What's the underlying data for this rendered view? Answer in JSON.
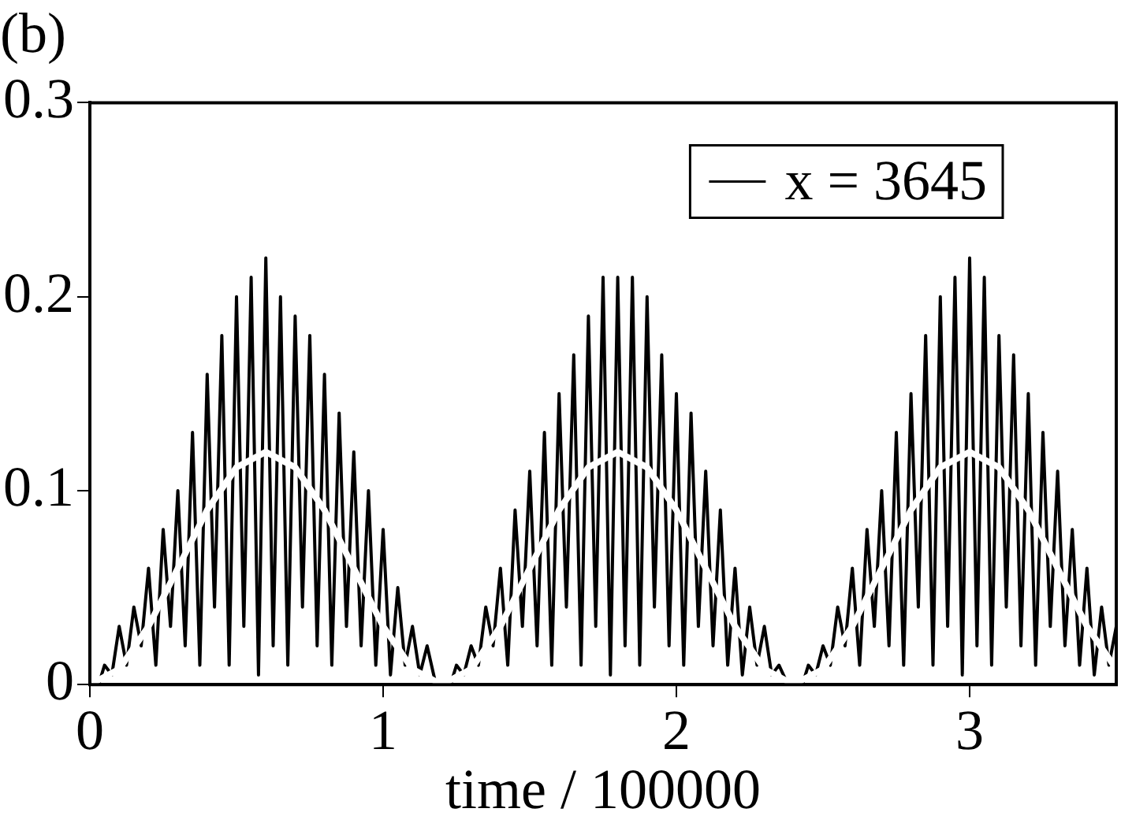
{
  "chart_data": {
    "type": "line",
    "title": "(b)",
    "xlabel": "time / 100000",
    "xlim": [
      0,
      3.5
    ],
    "xticks": [
      0,
      1,
      2,
      3
    ],
    "ylim": [
      0,
      0.3
    ],
    "yticks": [
      0,
      0.1,
      0.2,
      0.3
    ],
    "grid": false,
    "legend": "top right",
    "marker": "none",
    "line_style": "solid",
    "series": [
      {
        "name": "x = 3645",
        "color": "#000000",
        "x": [
          0.03,
          0.05,
          0.075,
          0.1,
          0.125,
          0.15,
          0.175,
          0.2,
          0.225,
          0.25,
          0.275,
          0.3,
          0.325,
          0.35,
          0.375,
          0.4,
          0.425,
          0.45,
          0.475,
          0.5,
          0.525,
          0.55,
          0.575,
          0.6,
          0.625,
          0.65,
          0.675,
          0.7,
          0.725,
          0.75,
          0.775,
          0.8,
          0.825,
          0.85,
          0.875,
          0.9,
          0.925,
          0.95,
          0.975,
          1,
          1.025,
          1.05,
          1.075,
          1.1,
          1.125,
          1.15,
          1.18,
          1.23,
          1.25,
          1.275,
          1.3,
          1.325,
          1.35,
          1.375,
          1.4,
          1.425,
          1.45,
          1.475,
          1.5,
          1.525,
          1.55,
          1.575,
          1.6,
          1.625,
          1.65,
          1.675,
          1.7,
          1.725,
          1.75,
          1.775,
          1.8,
          1.825,
          1.85,
          1.875,
          1.9,
          1.925,
          1.95,
          1.975,
          2,
          2.025,
          2.05,
          2.075,
          2.1,
          2.125,
          2.15,
          2.175,
          2.2,
          2.225,
          2.25,
          2.275,
          2.3,
          2.325,
          2.35,
          2.38,
          2.43,
          2.45,
          2.475,
          2.5,
          2.525,
          2.55,
          2.575,
          2.6,
          2.625,
          2.65,
          2.675,
          2.7,
          2.725,
          2.75,
          2.775,
          2.8,
          2.825,
          2.85,
          2.875,
          2.9,
          2.925,
          2.95,
          2.975,
          3,
          3.025,
          3.05,
          3.075,
          3.1,
          3.125,
          3.15,
          3.175,
          3.2,
          3.225,
          3.25,
          3.275,
          3.3,
          3.325,
          3.35,
          3.375,
          3.4,
          3.425,
          3.45,
          3.475,
          3.5
        ],
        "values": [
          0,
          0.01,
          0.005,
          0.03,
          0.01,
          0.04,
          0.02,
          0.06,
          0.01,
          0.08,
          0.03,
          0.1,
          0.02,
          0.13,
          0.01,
          0.16,
          0.04,
          0.18,
          0.01,
          0.2,
          0.03,
          0.21,
          0.005,
          0.22,
          0.02,
          0.2,
          0.01,
          0.19,
          0.04,
          0.18,
          0.02,
          0.16,
          0.01,
          0.14,
          0.03,
          0.12,
          0.02,
          0.1,
          0.01,
          0.08,
          0.005,
          0.05,
          0.01,
          0.03,
          0.005,
          0.02,
          0,
          0,
          0.01,
          0.005,
          0.02,
          0.01,
          0.04,
          0.02,
          0.06,
          0.01,
          0.09,
          0.03,
          0.11,
          0.02,
          0.13,
          0.01,
          0.15,
          0.04,
          0.17,
          0.01,
          0.19,
          0.03,
          0.21,
          0.005,
          0.21,
          0.02,
          0.21,
          0.01,
          0.2,
          0.04,
          0.17,
          0.02,
          0.15,
          0.01,
          0.14,
          0.03,
          0.11,
          0.02,
          0.09,
          0.01,
          0.06,
          0.005,
          0.04,
          0.01,
          0.03,
          0.005,
          0.01,
          0,
          0,
          0.01,
          0.005,
          0.02,
          0.01,
          0.04,
          0.02,
          0.06,
          0.01,
          0.08,
          0.03,
          0.1,
          0.02,
          0.13,
          0.01,
          0.15,
          0.04,
          0.18,
          0.01,
          0.2,
          0.03,
          0.21,
          0.005,
          0.22,
          0.02,
          0.21,
          0.01,
          0.18,
          0.04,
          0.17,
          0.02,
          0.15,
          0.01,
          0.13,
          0.03,
          0.11,
          0.02,
          0.08,
          0.01,
          0.06,
          0.005,
          0.04,
          0.01,
          0.03
        ]
      },
      {
        "color": "#ffffff",
        "x": [
          0,
          0.1,
          0.2,
          0.3,
          0.4,
          0.5,
          0.6,
          0.7,
          0.8,
          0.9,
          1,
          1.1,
          1.2,
          1.3,
          1.4,
          1.5,
          1.6,
          1.7,
          1.8,
          1.9,
          2,
          2.1,
          2.2,
          2.3,
          2.4,
          2.5,
          2.6,
          2.7,
          2.8,
          2.9,
          3,
          3.1,
          3.2,
          3.3,
          3.4,
          3.5
        ],
        "values": [
          0,
          0.008,
          0.03,
          0.06,
          0.09,
          0.112,
          0.12,
          0.112,
          0.09,
          0.06,
          0.03,
          0.008,
          0,
          0.008,
          0.03,
          0.06,
          0.09,
          0.112,
          0.12,
          0.112,
          0.09,
          0.06,
          0.03,
          0.008,
          0,
          0.008,
          0.03,
          0.06,
          0.09,
          0.112,
          0.12,
          0.112,
          0.09,
          0.06,
          0.03,
          0.008
        ]
      }
    ]
  }
}
